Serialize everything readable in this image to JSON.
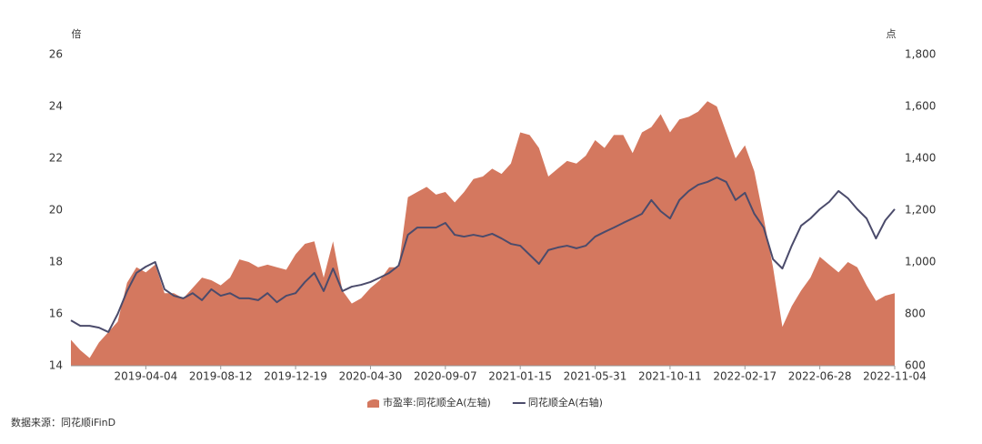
{
  "chart_data": {
    "type": "combo",
    "y_unit": "倍",
    "y2_unit": "点",
    "source": "数据来源：同花顺iFinD",
    "categories": [
      null,
      null,
      null,
      null,
      null,
      null,
      null,
      null,
      "2019-04-04",
      null,
      null,
      null,
      null,
      null,
      null,
      null,
      "2019-08-12",
      null,
      null,
      null,
      null,
      null,
      null,
      null,
      "2019-12-19",
      null,
      null,
      null,
      null,
      null,
      null,
      null,
      "2020-04-30",
      null,
      null,
      null,
      null,
      null,
      null,
      null,
      "2020-09-07",
      null,
      null,
      null,
      null,
      null,
      null,
      null,
      "2021-01-15",
      null,
      null,
      null,
      null,
      null,
      null,
      null,
      "2021-05-31",
      null,
      null,
      null,
      null,
      null,
      null,
      null,
      "2021-10-11",
      null,
      null,
      null,
      null,
      null,
      null,
      null,
      "2022-02-17",
      null,
      null,
      null,
      null,
      null,
      null,
      null,
      "2022-06-28",
      null,
      null,
      null,
      null,
      null,
      null,
      null,
      "2022-11-04"
    ],
    "series": [
      {
        "name": "市盈率:同花顺全A(左轴)",
        "type": "area",
        "color": "#d4785f",
        "values": [
          15.0,
          14.6,
          14.3,
          14.9,
          15.3,
          15.7,
          17.2,
          17.8,
          17.6,
          17.9,
          16.8,
          16.8,
          16.6,
          17.0,
          17.4,
          17.3,
          17.1,
          17.4,
          18.1,
          18.0,
          17.8,
          17.9,
          17.8,
          17.7,
          18.3,
          18.7,
          18.8,
          17.4,
          18.8,
          16.9,
          16.4,
          16.6,
          17.0,
          17.3,
          17.8,
          17.8,
          20.5,
          20.7,
          20.9,
          20.6,
          20.7,
          20.3,
          20.7,
          21.2,
          21.3,
          21.6,
          21.4,
          21.8,
          23.0,
          22.9,
          22.4,
          21.3,
          21.6,
          21.9,
          21.8,
          22.1,
          22.7,
          22.4,
          22.9,
          22.9,
          22.2,
          23.0,
          23.2,
          23.7,
          23.0,
          23.5,
          23.6,
          23.8,
          24.2,
          24.0,
          23.0,
          22.0,
          22.5,
          21.5,
          19.7,
          17.8,
          15.5,
          16.3,
          16.9,
          17.4,
          18.2,
          17.9,
          17.6,
          18.0,
          17.8,
          17.1,
          16.5,
          16.7,
          16.8
        ]
      },
      {
        "name": "同花顺全A(右轴)",
        "type": "line",
        "axis": "y2",
        "color": "#4b4b6b",
        "values": [
          775,
          754,
          754,
          747,
          730,
          800,
          888,
          958,
          982,
          1000,
          895,
          870,
          860,
          880,
          853,
          895,
          870,
          880,
          860,
          860,
          853,
          880,
          845,
          870,
          880,
          923,
          958,
          888,
          975,
          888,
          905,
          912,
          923,
          940,
          958,
          986,
          1105,
          1133,
          1133,
          1133,
          1151,
          1105,
          1098,
          1105,
          1098,
          1109,
          1091,
          1070,
          1063,
          1028,
          993,
          1046,
          1056,
          1063,
          1053,
          1063,
          1098,
          1116,
          1133,
          1151,
          1168,
          1186,
          1239,
          1196,
          1168,
          1239,
          1274,
          1298,
          1309,
          1326,
          1309,
          1239,
          1267,
          1186,
          1133,
          1011,
          975,
          1063,
          1140,
          1168,
          1204,
          1232,
          1274,
          1246,
          1204,
          1168,
          1091,
          1161,
          1204
        ]
      }
    ],
    "ylim": [
      14,
      26
    ],
    "yticks": [
      14,
      16,
      18,
      20,
      22,
      24,
      26
    ],
    "y2lim": [
      600,
      1800
    ],
    "y2ticks": [
      600,
      800,
      {
        "value": 1000,
        "label": "1,000"
      },
      {
        "value": 1200,
        "label": "1,200"
      },
      {
        "value": 1400,
        "label": "1,400"
      },
      {
        "value": 1600,
        "label": "1,600"
      },
      {
        "value": 1800,
        "label": "1,800"
      }
    ],
    "grid": false,
    "legend": "bottom"
  }
}
